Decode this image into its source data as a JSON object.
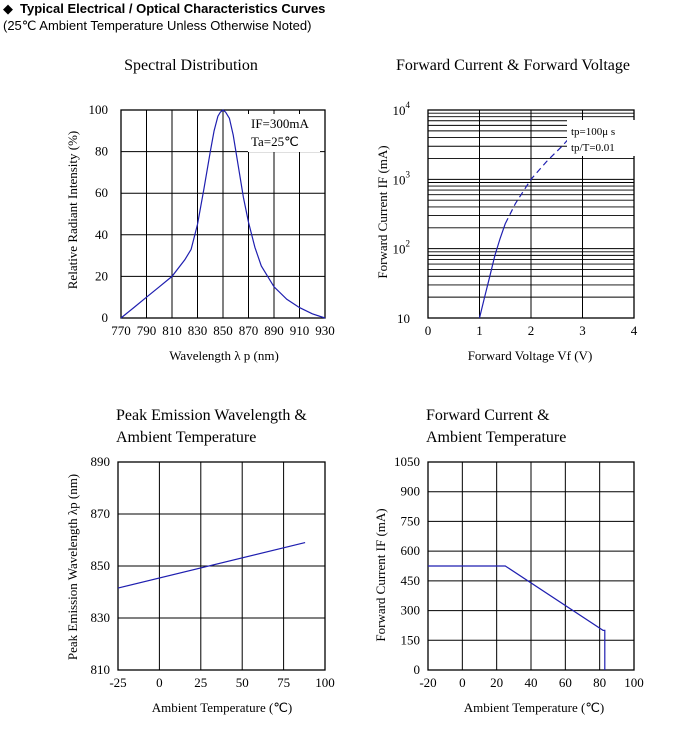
{
  "header": {
    "bullet": "◆",
    "title": "Typical Electrical / Optical Characteristics Curves",
    "subtitle": "(25℃ Ambient Temperature Unless Otherwise Noted)"
  },
  "colors": {
    "curve": "#1f1fb0",
    "grid": "#000000",
    "text": "#000000"
  },
  "chart_data": [
    {
      "type": "line",
      "title": "Spectral Distribution",
      "xlabel": "Wavelength λ p (nm)",
      "ylabel": "Relative Radiant Intensity (%)",
      "xlim": [
        770,
        930
      ],
      "ylim": [
        0,
        100
      ],
      "xticks": [
        "770",
        "790",
        "810",
        "830",
        "850",
        "870",
        "890",
        "910",
        "930"
      ],
      "yticks": [
        "0",
        "20",
        "40",
        "60",
        "80",
        "100"
      ],
      "annotations": [
        "IF=300mA",
        "Ta=25℃"
      ],
      "grid": true,
      "series": [
        {
          "x": [
            770,
            780,
            790,
            800,
            810,
            820,
            825,
            830,
            835,
            840,
            843,
            846,
            848,
            850,
            852,
            855,
            858,
            862,
            866,
            870,
            875,
            880,
            890,
            900,
            910,
            920,
            930
          ],
          "y": [
            0,
            5,
            10,
            15,
            20,
            28,
            33,
            45,
            62,
            80,
            90,
            97,
            99,
            100,
            99,
            96,
            88,
            73,
            58,
            46,
            34,
            25,
            15,
            9,
            5,
            2,
            0
          ]
        }
      ]
    },
    {
      "type": "line",
      "title": "Forward Current & Forward Voltage",
      "xlabel": "Forward Voltage Vf (V)",
      "ylabel": "Forward Current IF (mA)",
      "xlim": [
        0,
        4
      ],
      "ylim": [
        10,
        10000
      ],
      "yscale": "log",
      "xticks": [
        "0",
        "1",
        "2",
        "3",
        "4"
      ],
      "ytick_labels": [
        {
          "base": "10",
          "exp": "4"
        },
        {
          "base": "10",
          "exp": "3"
        },
        {
          "base": "10",
          "exp": "2"
        },
        {
          "base": "10",
          "exp": ""
        }
      ],
      "annotations": [
        "tp=100μ s",
        "tp/T=0.01"
      ],
      "grid": true,
      "series": [
        {
          "style": "solid",
          "x": [
            1.0,
            1.1,
            1.2,
            1.3,
            1.4,
            1.5
          ],
          "y": [
            10,
            20,
            40,
            80,
            140,
            230
          ]
        },
        {
          "style": "dashed",
          "x": [
            1.5,
            1.7,
            2.0,
            2.3,
            2.6,
            2.85
          ],
          "y": [
            230,
            450,
            1000,
            1800,
            3000,
            4800
          ]
        }
      ]
    },
    {
      "type": "line",
      "title": "Peak Emission Wavelength & Ambient Temperature",
      "title_lines": [
        "Peak Emission Wavelength &",
        "Ambient Temperature"
      ],
      "xlabel": "Ambient Temperature (℃)",
      "ylabel": "Peak Emission Wavelength λp (nm)",
      "xlim": [
        -25,
        100
      ],
      "ylim": [
        810,
        890
      ],
      "xticks": [
        "-25",
        "0",
        "25",
        "50",
        "75",
        "100"
      ],
      "yticks": [
        "810",
        "830",
        "850",
        "870",
        "890"
      ],
      "grid": true,
      "series": [
        {
          "x": [
            -25,
            88
          ],
          "y": [
            841.5,
            859
          ]
        }
      ]
    },
    {
      "type": "line",
      "title": "Forward Current & Ambient Temperature",
      "title_lines": [
        "Forward Current &",
        "Ambient Temperature"
      ],
      "xlabel": "Ambient Temperature (℃)",
      "ylabel": "Forward Current IF (mA)",
      "xlim": [
        -20,
        100
      ],
      "ylim": [
        0,
        1050
      ],
      "xticks": [
        "-20",
        "0",
        "20",
        "40",
        "60",
        "80",
        "100"
      ],
      "yticks": [
        "0",
        "150",
        "300",
        "450",
        "600",
        "750",
        "900",
        "1050"
      ],
      "grid": true,
      "series": [
        {
          "x": [
            -20,
            25,
            82,
            83,
            83
          ],
          "y": [
            525,
            525,
            200,
            200,
            0
          ]
        }
      ]
    }
  ]
}
